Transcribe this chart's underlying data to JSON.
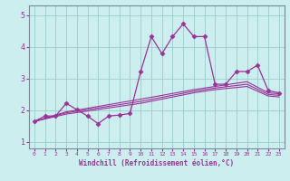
{
  "title": "",
  "xlabel": "Windchill (Refroidissement éolien,°C)",
  "bg_color": "#cceeee",
  "line_color": "#993399",
  "grid_color": "#99cccc",
  "spine_color": "#778899",
  "xlim": [
    -0.5,
    23.5
  ],
  "ylim": [
    0.8,
    5.3
  ],
  "xticks": [
    0,
    1,
    2,
    3,
    4,
    5,
    6,
    7,
    8,
    9,
    10,
    11,
    12,
    13,
    14,
    15,
    16,
    17,
    18,
    19,
    20,
    21,
    22,
    23
  ],
  "yticks": [
    1,
    2,
    3,
    4,
    5
  ],
  "series": [
    {
      "x": [
        0,
        1,
        2,
        3,
        4,
        5,
        6,
        7,
        8,
        9,
        10,
        11,
        12,
        13,
        14,
        15,
        16,
        17,
        18,
        19,
        20,
        21,
        22,
        23
      ],
      "y": [
        1.65,
        1.82,
        1.82,
        2.22,
        2.02,
        1.82,
        1.58,
        1.82,
        1.85,
        1.9,
        3.22,
        4.32,
        3.78,
        4.32,
        4.72,
        4.32,
        4.32,
        2.82,
        2.82,
        3.22,
        3.22,
        3.42,
        2.62,
        2.55
      ],
      "marker": "D",
      "markersize": 2.5,
      "linewidth": 0.9,
      "has_marker": true
    },
    {
      "x": [
        0,
        3,
        10,
        15,
        17,
        20,
        22,
        23
      ],
      "y": [
        1.65,
        1.95,
        2.35,
        2.65,
        2.75,
        2.9,
        2.55,
        2.52
      ],
      "marker": null,
      "markersize": 0,
      "linewidth": 0.8,
      "has_marker": false
    },
    {
      "x": [
        0,
        3,
        10,
        15,
        17,
        20,
        22,
        23
      ],
      "y": [
        1.65,
        1.92,
        2.28,
        2.6,
        2.7,
        2.82,
        2.5,
        2.47
      ],
      "marker": null,
      "markersize": 0,
      "linewidth": 0.8,
      "has_marker": false
    },
    {
      "x": [
        0,
        3,
        10,
        15,
        17,
        20,
        22,
        23
      ],
      "y": [
        1.65,
        1.88,
        2.22,
        2.55,
        2.65,
        2.75,
        2.45,
        2.42
      ],
      "marker": null,
      "markersize": 0,
      "linewidth": 0.8,
      "has_marker": false
    }
  ]
}
